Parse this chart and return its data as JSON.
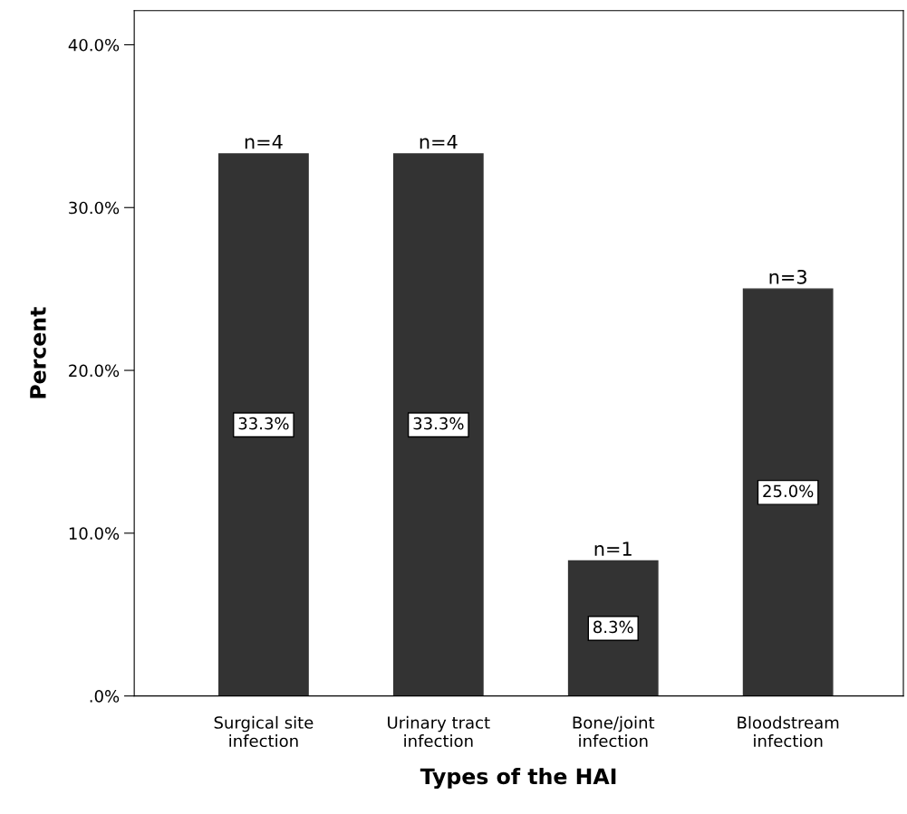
{
  "chart_data": {
    "type": "bar",
    "xlabel": "Types of the HAI",
    "ylabel": "Percent",
    "categories": [
      "Surgical site\ninfection",
      "Urinary tract\ninfection",
      "Bone/joint\ninfection",
      "Bloodstream\ninfection"
    ],
    "values": [
      33.3,
      33.3,
      8.3,
      25.0
    ],
    "color": "#333333",
    "value_labels": [
      "33.3%",
      "33.3%",
      "8.3%",
      "25.0%"
    ],
    "annotations": [
      {
        "text": "n=4",
        "x": "Surgical site\ninfection",
        "y": 33.3
      },
      {
        "text": "n=4",
        "x": "Urinary tract\ninfection",
        "y": 33.3
      },
      {
        "text": "n=1",
        "x": "Bone/joint\ninfection",
        "y": 8.3
      },
      {
        "text": "n=3",
        "x": "Bloodstream\ninfection",
        "y": 25.0
      }
    ],
    "ylim": [
      0,
      42.1
    ],
    "yticks": [
      {
        "value": 0,
        "label": ".0%"
      },
      {
        "value": 10,
        "label": "10.0%"
      },
      {
        "value": 20,
        "label": "20.0%"
      },
      {
        "value": 30,
        "label": "30.0%"
      },
      {
        "value": 40,
        "label": "40.0%"
      }
    ],
    "grid": false
  }
}
